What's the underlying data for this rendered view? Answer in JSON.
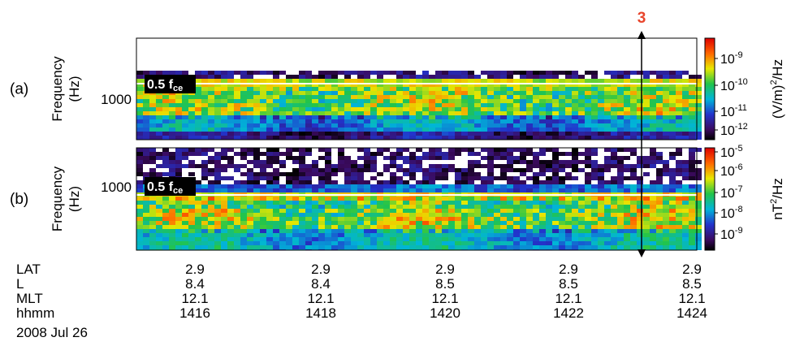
{
  "figure": {
    "marker": "3",
    "panels": [
      {
        "label": "(a)",
        "ylabel": [
          "Frequency",
          "(Hz)"
        ],
        "ytick": "1000",
        "annotation": {
          "text": "0.5 f",
          "subscript": "ce"
        },
        "colorbar": {
          "ticks": [
            {
              "base": "10",
              "exponent": "-9"
            },
            {
              "base": "10",
              "exponent": "-10"
            },
            {
              "base": "10",
              "exponent": "-11"
            },
            {
              "base": "10",
              "exponent": "-12"
            }
          ],
          "unit": {
            "text": "(V/m)",
            "superscript": "2",
            "suffix": "/Hz"
          }
        }
      },
      {
        "label": "(b)",
        "ylabel": [
          "Frequency",
          "(Hz)"
        ],
        "ytick": "1000",
        "annotation": {
          "text": "0.5 f",
          "subscript": "ce"
        },
        "colorbar": {
          "ticks": [
            {
              "base": "10",
              "exponent": "-5"
            },
            {
              "base": "10",
              "exponent": "-6"
            },
            {
              "base": "10",
              "exponent": "-7"
            },
            {
              "base": "10",
              "exponent": "-8"
            },
            {
              "base": "10",
              "exponent": "-9"
            }
          ],
          "unit": {
            "text": "nT",
            "superscript": "2",
            "suffix": "/Hz"
          }
        }
      }
    ],
    "table": {
      "row_labels": [
        "LAT",
        "L",
        "MLT",
        "hhmm"
      ],
      "columns": [
        [
          "2.9",
          "8.4",
          "12.1",
          "1416"
        ],
        [
          "2.9",
          "8.4",
          "12.1",
          "1418"
        ],
        [
          "2.9",
          "8.5",
          "12.1",
          "1420"
        ],
        [
          "2.9",
          "8.5",
          "12.1",
          "1422"
        ],
        [
          "2.9",
          "8.5",
          "12.1",
          "1424"
        ]
      ],
      "date": "2008 Jul 26"
    }
  }
}
